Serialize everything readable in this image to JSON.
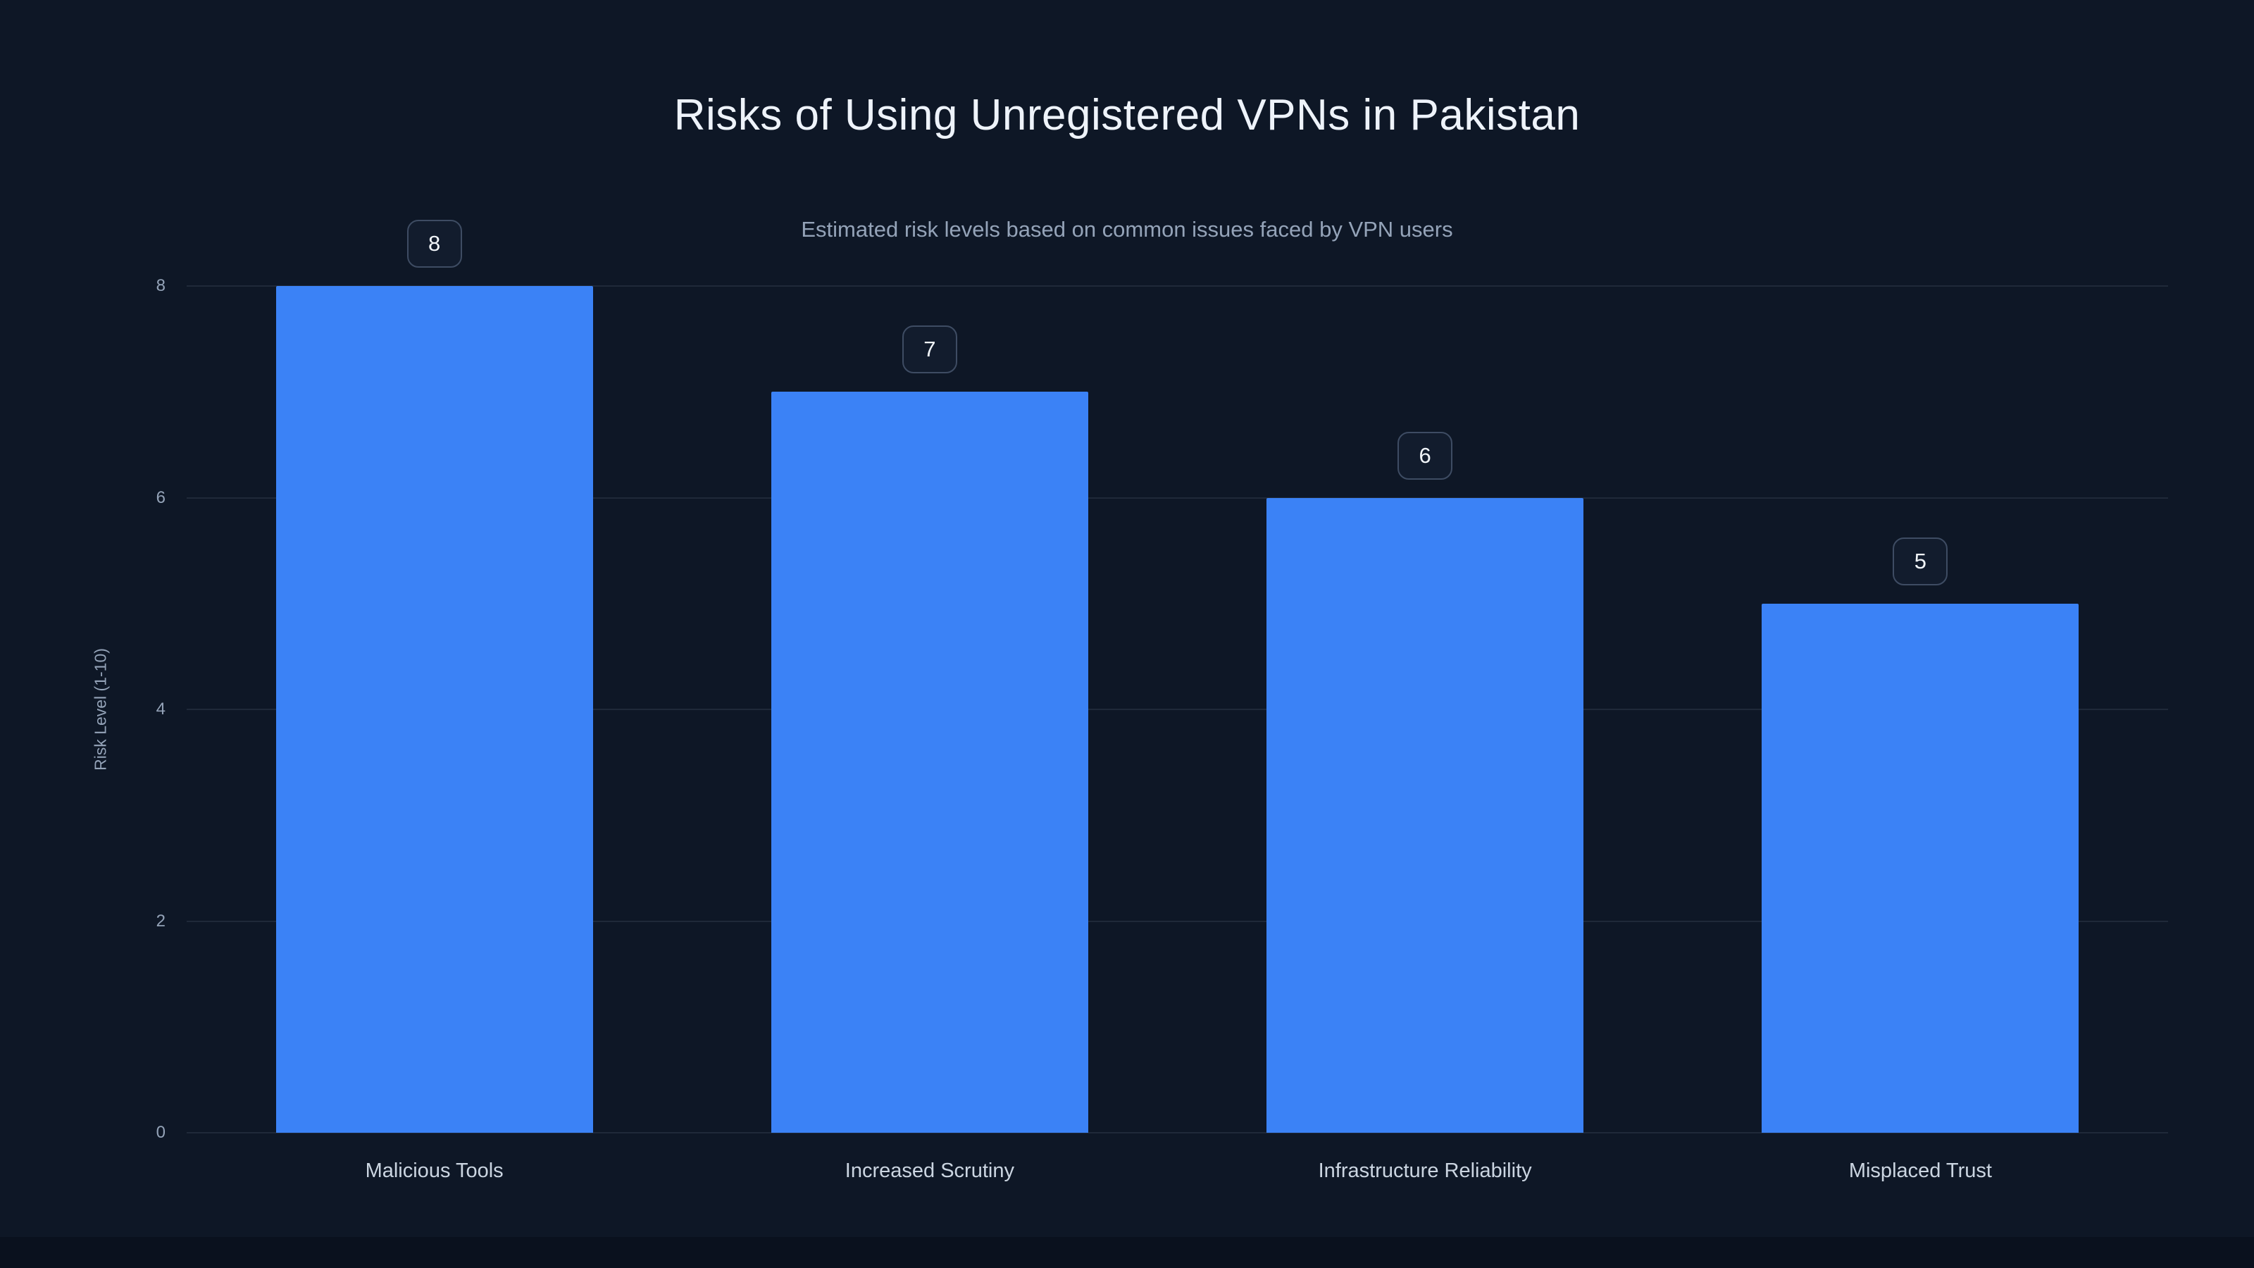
{
  "chart_data": {
    "type": "bar",
    "title": "Risks of Using Unregistered VPNs in Pakistan",
    "subtitle": "Estimated risk levels based on common issues faced by VPN users",
    "categories": [
      "Malicious Tools",
      "Increased Scrutiny",
      "Infrastructure Reliability",
      "Misplaced Trust"
    ],
    "values": [
      8,
      7,
      6,
      5
    ],
    "xlabel": "",
    "ylabel": "Risk Level (1-10)",
    "ylim": [
      0,
      8
    ],
    "yticks": [
      0,
      2,
      4,
      6,
      8
    ],
    "grid": true,
    "legend_position": "none",
    "colors": {
      "bar": "#3b82f6",
      "background": "#0e1726",
      "page_background": "#0a111e",
      "title_text": "#eef3fa",
      "subtitle_text": "#94a3b8",
      "axis_text": "#94a3b8",
      "category_text": "#cbd5e1",
      "gridline": "rgba(148,163,184,0.13)",
      "badge_background": "#121c2d",
      "badge_border": "#3e4c63",
      "badge_text": "#f1f5f9"
    }
  }
}
